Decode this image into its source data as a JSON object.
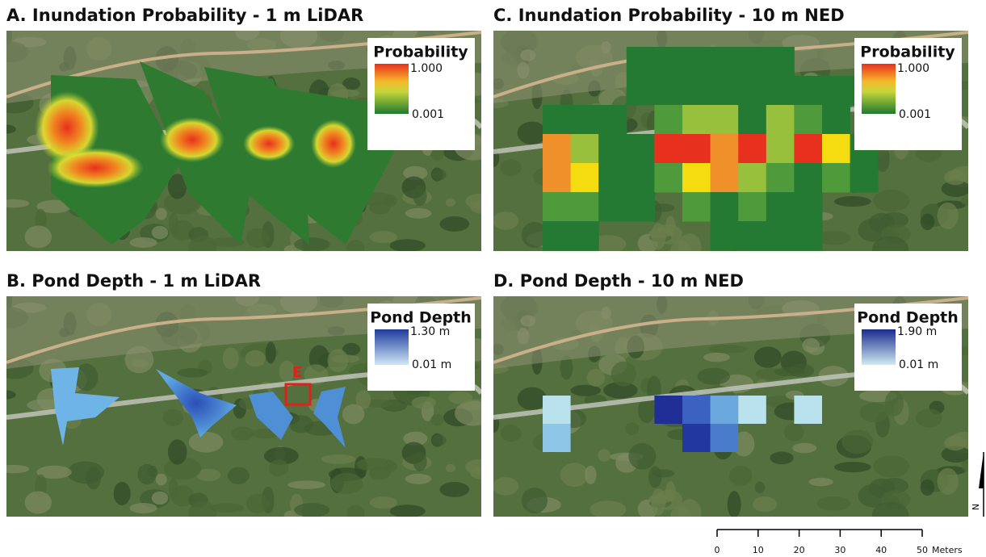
{
  "panels": [
    {
      "title": "A. Inundation Probability - 1 m LiDAR",
      "legend": {
        "title": "Probability",
        "max": "1.000",
        "min": "0.001"
      }
    },
    {
      "title": "C. Inundation Probability - 10 m NED",
      "legend": {
        "title": "Probability",
        "max": "1.000",
        "min": "0.001"
      }
    },
    {
      "title": "B. Pond Depth - 1 m LiDAR",
      "legend": {
        "title": "Pond Depth",
        "max": "1.30 m",
        "min": "0.01 m"
      }
    },
    {
      "title": "D. Pond Depth - 10 m NED",
      "legend": {
        "title": "Pond Depth",
        "max": "1.90 m",
        "min": "0.01 m"
      }
    }
  ],
  "inset_label": "E",
  "scale_bar": {
    "ticks": [
      0,
      10,
      20,
      30,
      40,
      50
    ],
    "unit": "Meters"
  },
  "north": "N"
}
